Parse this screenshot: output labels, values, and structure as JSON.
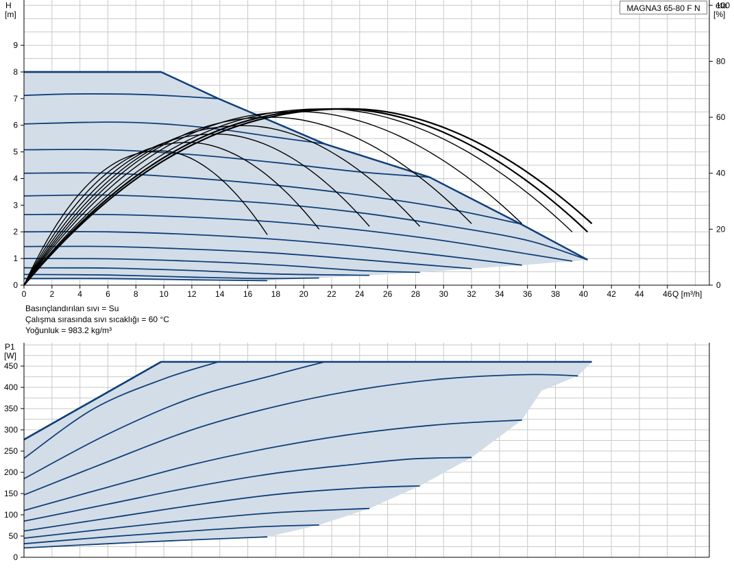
{
  "model_label": "MAGNA3 65-80 F N",
  "notes": [
    "Basınçlandırılan sıvı = Su",
    "Çalışma sırasında sıvı sıcaklığı = 60 °C",
    "Yoğunluk = 983.2 kg/m³"
  ],
  "colors": {
    "fill": "#d3dde8",
    "curve": "#0f3f78",
    "eta": "#000000",
    "grid": "#c8c8c8"
  },
  "chart_data": [
    {
      "type": "line",
      "y_title_symbol": "H",
      "y_title_unit": "[m]",
      "y2_title_symbol": "eta",
      "y2_title_unit": "[%]",
      "x_title": "Q [m³/h]",
      "xlim": [
        0,
        49
      ],
      "ylim": [
        0,
        10.7
      ],
      "y2lim": [
        0,
        101.9
      ],
      "x_ticks": [
        "0",
        "2",
        "4",
        "6",
        "8",
        "10",
        "12",
        "14",
        "16",
        "18",
        "20",
        "22",
        "24",
        "26",
        "28",
        "30",
        "32",
        "34",
        "36",
        "38",
        "40",
        "42",
        "44",
        "46"
      ],
      "y_ticks": [
        "0",
        "1",
        "2",
        "3",
        "4",
        "5",
        "6",
        "7",
        "8",
        "9"
      ],
      "y2_ticks": [
        "0",
        "20",
        "40",
        "60",
        "80",
        "100"
      ],
      "grid": true,
      "operating_envelope": [
        [
          0,
          8
        ],
        [
          9.8,
          8
        ],
        [
          13.9,
          7
        ],
        [
          21.5,
          5.3
        ],
        [
          29,
          4.05
        ],
        [
          35.5,
          2.3
        ],
        [
          40.3,
          0.95
        ],
        [
          39.2,
          0.9
        ],
        [
          35.6,
          0.75
        ],
        [
          32,
          0.62
        ],
        [
          28.3,
          0.48
        ],
        [
          24.7,
          0.37
        ],
        [
          21.1,
          0.27
        ],
        [
          17.4,
          0.17
        ],
        [
          0,
          0.2
        ]
      ],
      "series": [
        {
          "head": [
            [
              0,
              8
            ],
            [
              9.8,
              8
            ]
          ]
        },
        {
          "head": [
            [
              0,
              7.12
            ],
            [
              3,
              7.17
            ],
            [
              7,
              7.17
            ],
            [
              10,
              7.12
            ],
            [
              13.9,
              7.0
            ]
          ]
        },
        {
          "head": [
            [
              0,
              6.05
            ],
            [
              6,
              6.12
            ],
            [
              10,
              6.05
            ],
            [
              14,
              5.85
            ],
            [
              18,
              5.55
            ],
            [
              21.5,
              5.3
            ]
          ]
        },
        {
          "head": [
            [
              0,
              5.08
            ],
            [
              6,
              5.08
            ],
            [
              12,
              4.9
            ],
            [
              18,
              4.6
            ],
            [
              24,
              4.25
            ],
            [
              29,
              4.05
            ]
          ]
        },
        {
          "head": [
            [
              0,
              4.2
            ],
            [
              6,
              4.2
            ],
            [
              12,
              4.02
            ],
            [
              18,
              3.75
            ],
            [
              24,
              3.38
            ],
            [
              30,
              2.9
            ],
            [
              35.5,
              2.3
            ]
          ]
        },
        {
          "head": [
            [
              0,
              3.35
            ],
            [
              6,
              3.38
            ],
            [
              12,
              3.25
            ],
            [
              18,
              3.05
            ],
            [
              24,
              2.72
            ],
            [
              30,
              2.25
            ],
            [
              36,
              1.68
            ],
            [
              40.3,
              0.95
            ]
          ]
        },
        {
          "head": [
            [
              0,
              2.65
            ],
            [
              6,
              2.65
            ],
            [
              12,
              2.55
            ],
            [
              18,
              2.37
            ],
            [
              24,
              2.07
            ],
            [
              30,
              1.67
            ],
            [
              36,
              1.17
            ],
            [
              39.2,
              0.9
            ]
          ]
        },
        {
          "head": [
            [
              0,
              2.0
            ],
            [
              6,
              2.0
            ],
            [
              12,
              1.9
            ],
            [
              18,
              1.72
            ],
            [
              24,
              1.45
            ],
            [
              30,
              1.1
            ],
            [
              35.6,
              0.75
            ]
          ]
        },
        {
          "head": [
            [
              0,
              1.45
            ],
            [
              6,
              1.45
            ],
            [
              12,
              1.35
            ],
            [
              18,
              1.2
            ],
            [
              24,
              0.96
            ],
            [
              28,
              0.79
            ],
            [
              32,
              0.62
            ]
          ]
        },
        {
          "head": [
            [
              0,
              1.0
            ],
            [
              6,
              0.99
            ],
            [
              12,
              0.9
            ],
            [
              18,
              0.76
            ],
            [
              24,
              0.55
            ],
            [
              28.3,
              0.48
            ]
          ]
        },
        {
          "head": [
            [
              0,
              0.65
            ],
            [
              6,
              0.64
            ],
            [
              12,
              0.55
            ],
            [
              18,
              0.42
            ],
            [
              24.7,
              0.37
            ]
          ]
        },
        {
          "head": [
            [
              0,
              0.4
            ],
            [
              6,
              0.38
            ],
            [
              12,
              0.3
            ],
            [
              17,
              0.25
            ],
            [
              21.1,
              0.27
            ]
          ]
        },
        {
          "head": [
            [
              0,
              0.25
            ],
            [
              6,
              0.25
            ],
            [
              12,
              0.2
            ],
            [
              17.4,
              0.17
            ]
          ]
        }
      ],
      "eta_curves": [
        {
          "x_end": 17.4,
          "peak_x": 9.8,
          "peak_eta": 48,
          "end_eta": 18
        },
        {
          "x_end": 21.1,
          "peak_x": 11.8,
          "peak_eta": 51,
          "end_eta": 20
        },
        {
          "x_end": 24.7,
          "peak_x": 13.8,
          "peak_eta": 54,
          "end_eta": 21
        },
        {
          "x_end": 28.3,
          "peak_x": 15.8,
          "peak_eta": 57,
          "end_eta": 21
        },
        {
          "x_end": 32.0,
          "peak_x": 17.8,
          "peak_eta": 60,
          "end_eta": 22
        },
        {
          "x_end": 35.6,
          "peak_x": 19.7,
          "peak_eta": 62,
          "end_eta": 22
        },
        {
          "x_end": 39.2,
          "peak_x": 21.6,
          "peak_eta": 63,
          "end_eta": 19
        },
        {
          "x_end": 40.3,
          "peak_x": 22.6,
          "peak_eta": 63,
          "end_eta": 19
        },
        {
          "x_end": 40.6,
          "peak_x": 23.4,
          "peak_eta": 63,
          "end_eta": 22
        }
      ]
    },
    {
      "type": "line",
      "y_title_symbol": "P1",
      "y_title_unit": "[W]",
      "xlim": [
        0,
        49
      ],
      "ylim": [
        0,
        505
      ],
      "y_ticks": [
        "0",
        "50",
        "100",
        "150",
        "200",
        "250",
        "300",
        "350",
        "400",
        "450"
      ],
      "grid": true,
      "operating_envelope": [
        [
          0,
          277
        ],
        [
          9.8,
          460
        ],
        [
          40.6,
          460
        ],
        [
          39.6,
          427
        ],
        [
          37,
          392
        ],
        [
          35.6,
          323
        ],
        [
          32,
          235
        ],
        [
          28.3,
          168
        ],
        [
          24.7,
          115
        ],
        [
          21.1,
          76
        ],
        [
          17.4,
          48
        ],
        [
          0,
          22
        ]
      ],
      "series": [
        {
          "power": [
            [
              0,
              277
            ],
            [
              9.8,
              460
            ]
          ]
        },
        {
          "power": [
            [
              0,
              233
            ],
            [
              5,
              350
            ],
            [
              10,
              420
            ],
            [
              13.9,
              460
            ]
          ]
        },
        {
          "power": [
            [
              0,
              185
            ],
            [
              6,
              290
            ],
            [
              12,
              375
            ],
            [
              18,
              430
            ],
            [
              21.5,
              460
            ]
          ]
        },
        {
          "power": [
            [
              0,
              147
            ],
            [
              6,
              225
            ],
            [
              12,
              300
            ],
            [
              18,
              355
            ],
            [
              24,
              395
            ],
            [
              30,
              420
            ],
            [
              36,
              430
            ],
            [
              39.6,
              427
            ]
          ]
        },
        {
          "power": [
            [
              0,
              110
            ],
            [
              6,
              165
            ],
            [
              12,
              218
            ],
            [
              18,
              260
            ],
            [
              24,
              292
            ],
            [
              30,
              313
            ],
            [
              35.6,
              323
            ]
          ]
        },
        {
          "power": [
            [
              0,
              85
            ],
            [
              6,
              125
            ],
            [
              12,
              165
            ],
            [
              18,
              198
            ],
            [
              24,
              220
            ],
            [
              28,
              232
            ],
            [
              32,
              235
            ]
          ]
        },
        {
          "power": [
            [
              0,
              62
            ],
            [
              6,
              92
            ],
            [
              12,
              122
            ],
            [
              18,
              148
            ],
            [
              24,
              163
            ],
            [
              28.3,
              168
            ]
          ]
        },
        {
          "power": [
            [
              0,
              45
            ],
            [
              6,
              67
            ],
            [
              12,
              88
            ],
            [
              18,
              105
            ],
            [
              24.7,
              115
            ]
          ]
        },
        {
          "power": [
            [
              0,
              32
            ],
            [
              6,
              48
            ],
            [
              12,
              62
            ],
            [
              17,
              72
            ],
            [
              21.1,
              76
            ]
          ]
        },
        {
          "power": [
            [
              0,
              22
            ],
            [
              6,
              32
            ],
            [
              12,
              41
            ],
            [
              17.4,
              48
            ]
          ]
        }
      ]
    }
  ]
}
